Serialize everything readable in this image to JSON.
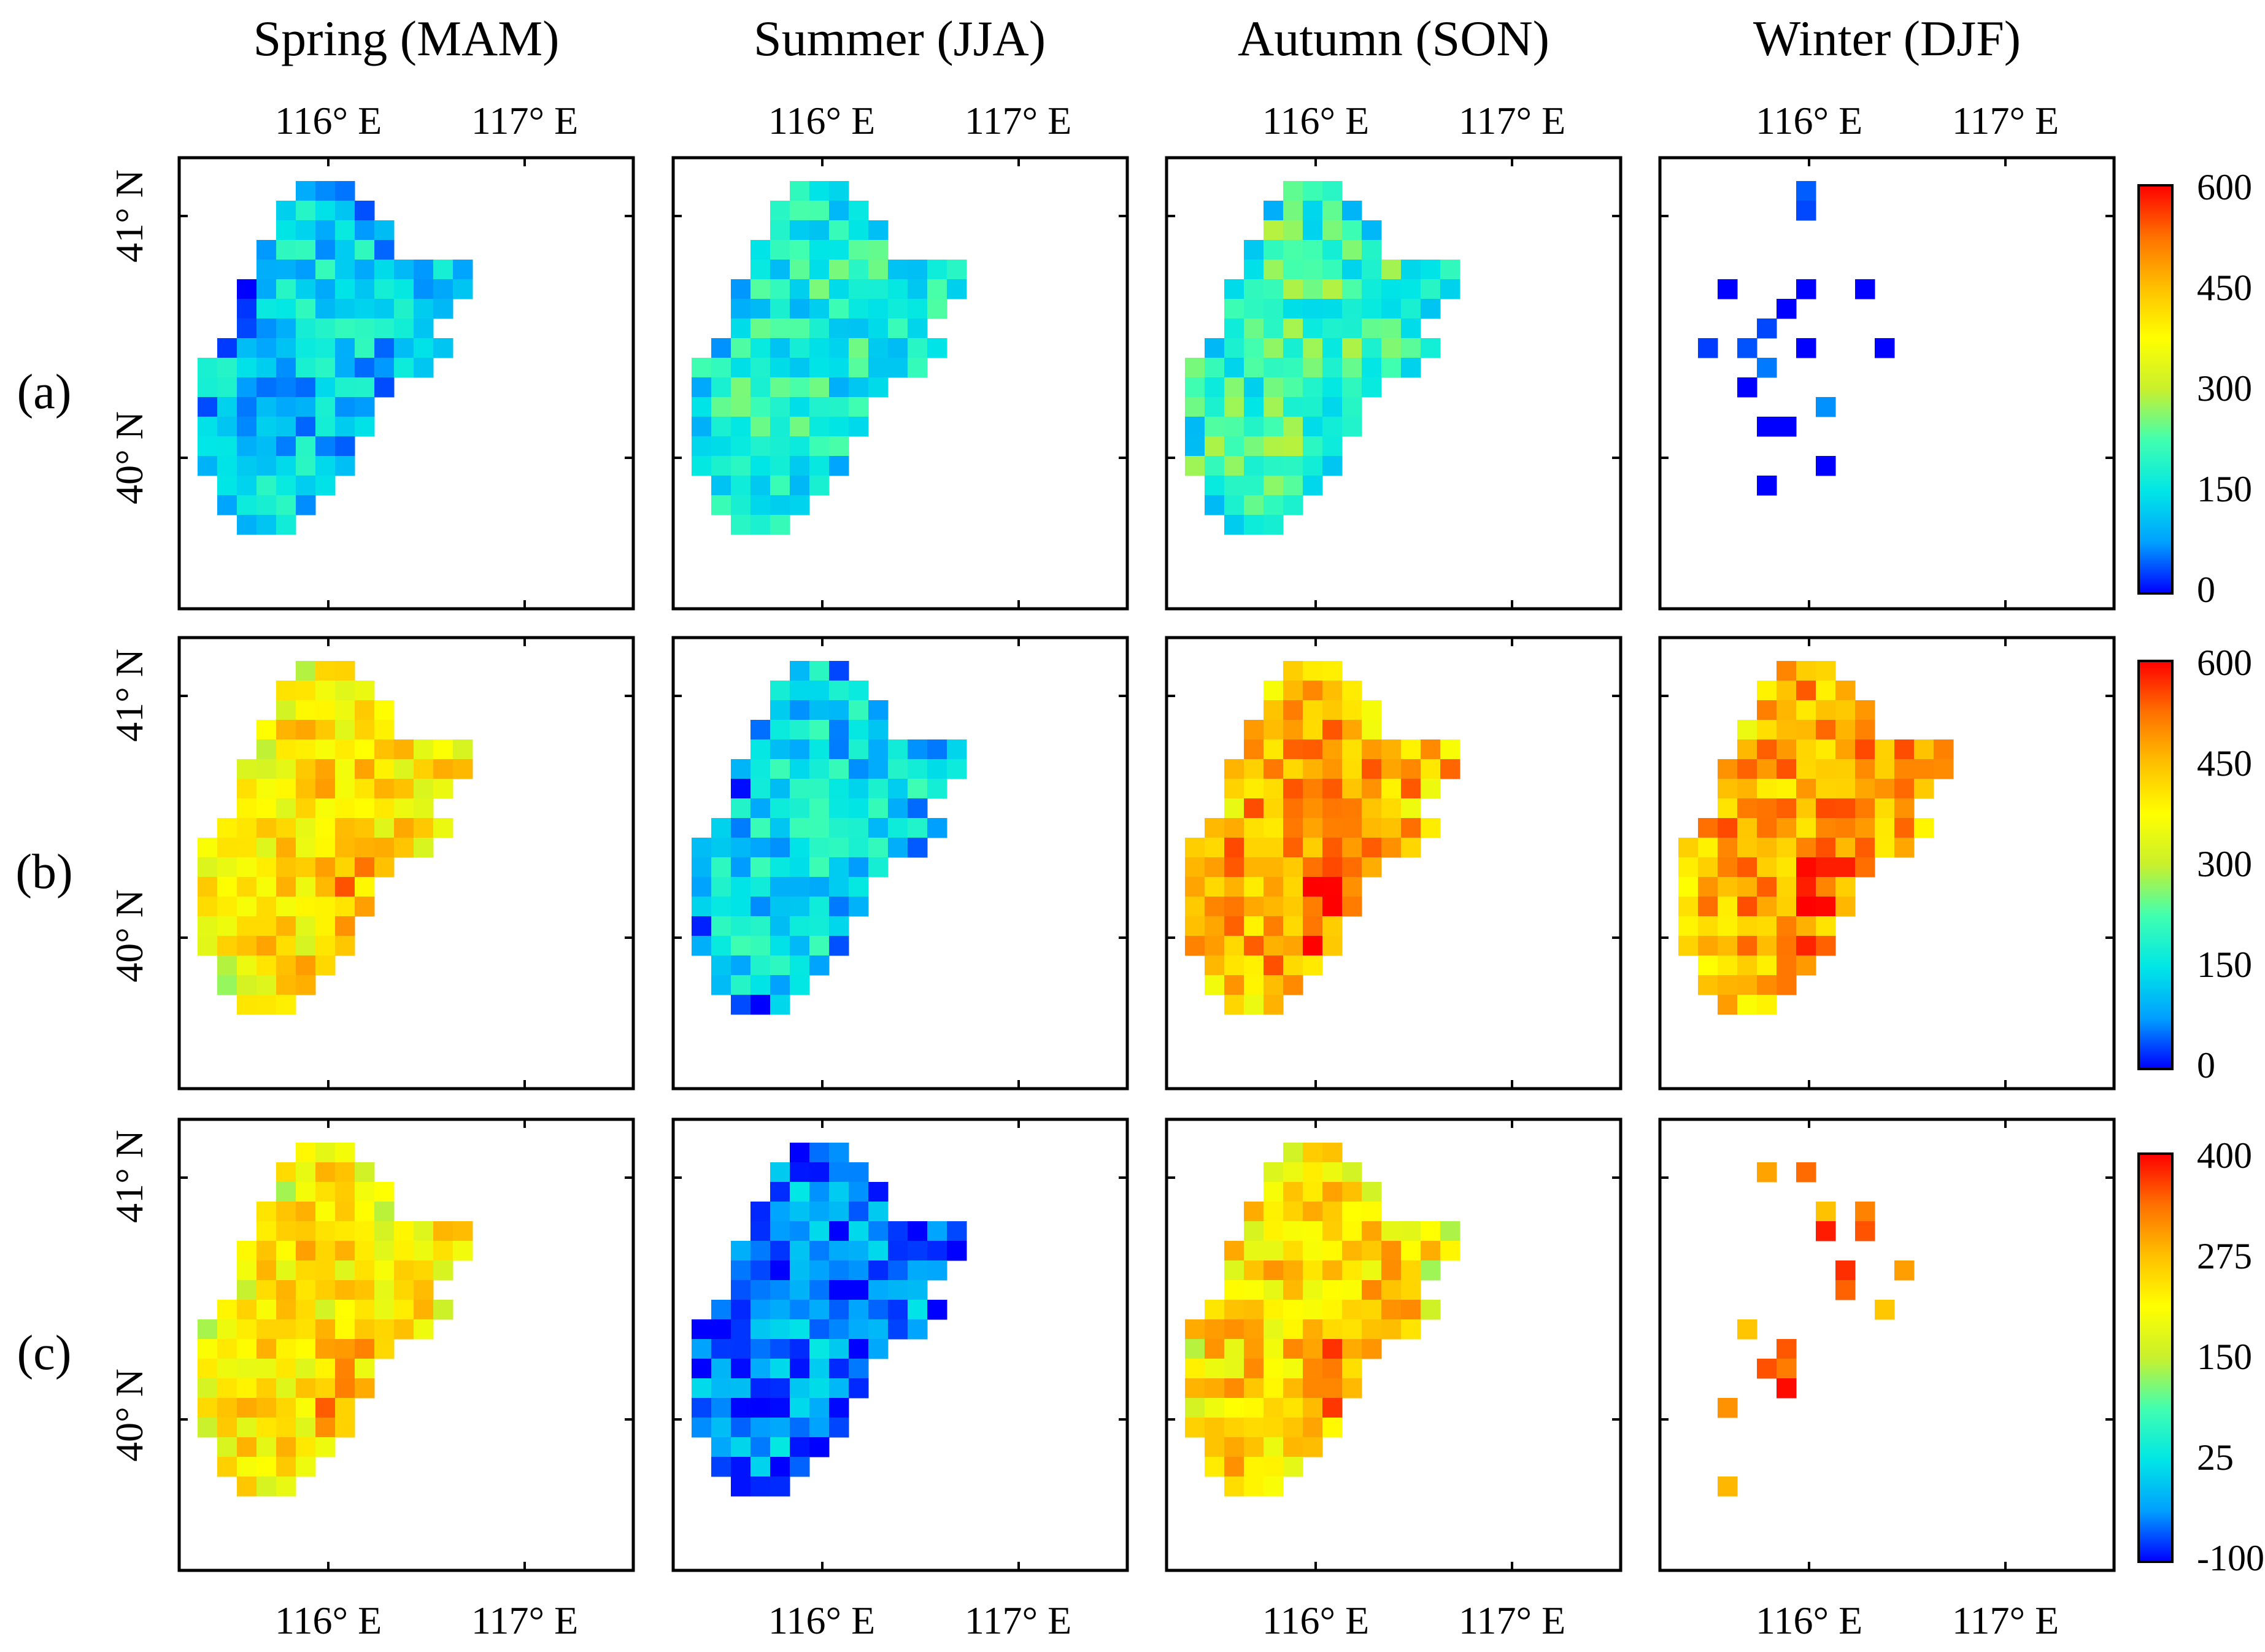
{
  "seasons": [
    "Spring (MAM)",
    "Summer (JJA)",
    "Autumn (SON)",
    "Winter (DJF)"
  ],
  "row_labels": [
    "(a)",
    "(b)",
    "(c)"
  ],
  "lon_ticks": [
    "116° E",
    "117° E"
  ],
  "lat_ticks": [
    "41° N",
    "40° N"
  ],
  "colorbars": [
    {
      "ticks": [
        "600",
        "450",
        "300",
        "150",
        "0"
      ],
      "min": 0,
      "max": 600
    },
    {
      "ticks": [
        "600",
        "450",
        "300",
        "150",
        "0"
      ],
      "min": 0,
      "max": 600
    },
    {
      "ticks": [
        "400",
        "275",
        "150",
        "25",
        "-100"
      ],
      "min": -100,
      "max": 400
    }
  ],
  "colormap_stops": [
    "#0000ff",
    "#00a0ff",
    "#00e6e6",
    "#40ffb0",
    "#c8f02d",
    "#ffff00",
    "#ffc000",
    "#ff7000",
    "#ff0000"
  ],
  "chart_data": {
    "type": "heatmap",
    "title": "",
    "layout": "3 rows x 4 seasonal maps over Beijing region",
    "grid_note": "Approximate gridded values (map units) read from colours; -1 / null means no data",
    "row_levels": {
      "a": {
        "Spring (MAM)": 130,
        "Summer (JJA)": 175,
        "Autumn (SON)": 210,
        "Winter (DJF)": 0
      },
      "b": {
        "Spring (MAM)": 400,
        "Summer (JJA)": 140,
        "Autumn (SON)": 470,
        "Winter (DJF)": 470
      },
      "c": {
        "Spring (MAM)": 230,
        "Summer (JJA)": -40,
        "Autumn (SON)": 250,
        "Winter (DJF)": 330
      }
    }
  }
}
